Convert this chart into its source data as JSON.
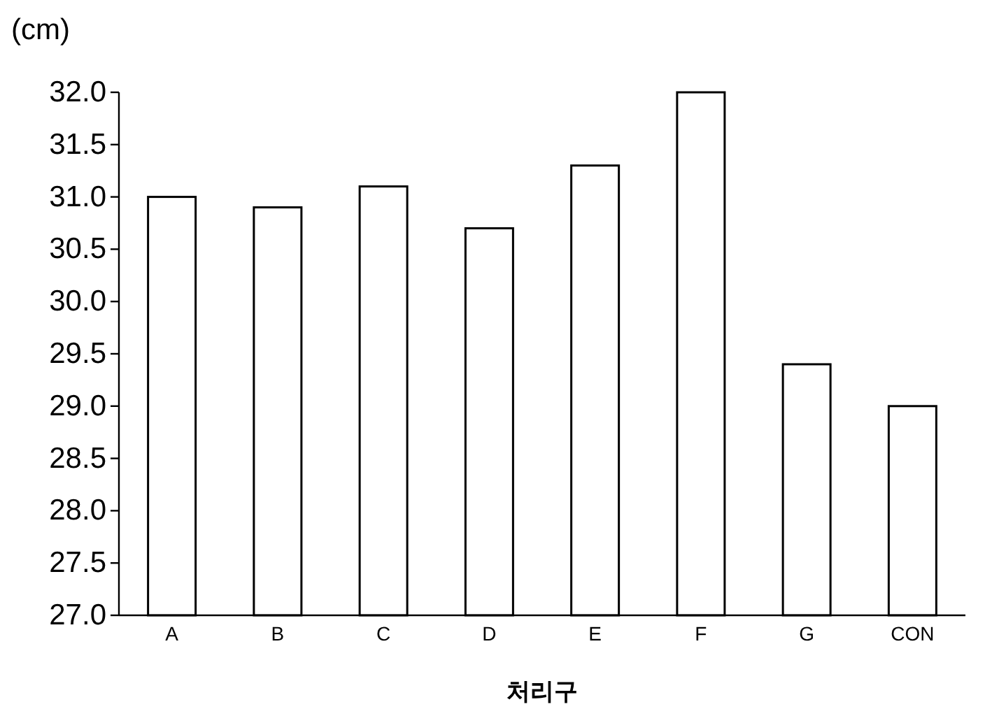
{
  "chart_data": {
    "type": "bar",
    "ylabel": "(cm)",
    "xlabel": "처리구",
    "categories": [
      "A",
      "B",
      "C",
      "D",
      "E",
      "F",
      "G",
      "CON"
    ],
    "values": [
      31.0,
      30.9,
      31.1,
      30.7,
      31.3,
      32.0,
      29.4,
      29.0
    ],
    "color": "#ffffff",
    "ylim": [
      27.0,
      32.0
    ],
    "yticks": [
      {
        "value": 27.0,
        "label": "27.0"
      },
      {
        "value": 27.5,
        "label": "27.5"
      },
      {
        "value": 28.0,
        "label": "28.0"
      },
      {
        "value": 28.5,
        "label": "28.5"
      },
      {
        "value": 29.0,
        "label": "29.0"
      },
      {
        "value": 29.5,
        "label": "29.5"
      },
      {
        "value": 30.0,
        "label": "30.0"
      },
      {
        "value": 30.5,
        "label": "30.5"
      },
      {
        "value": 31.0,
        "label": "31.0"
      },
      {
        "value": 31.5,
        "label": "31.5"
      },
      {
        "value": 32.0,
        "label": "32.0"
      }
    ],
    "grid": false
  }
}
